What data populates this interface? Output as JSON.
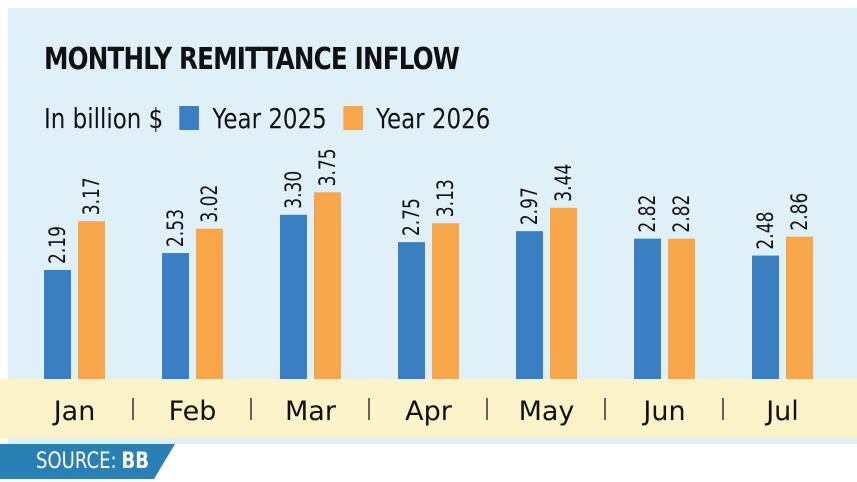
{
  "chart_data": {
    "type": "bar",
    "title": "MONTHLY REMITTANCE INFLOW",
    "ylabel": "In billion $",
    "categories": [
      "Jan",
      "Feb",
      "Mar",
      "Apr",
      "May",
      "Jun",
      "Jul"
    ],
    "series": [
      {
        "name": "Year 2025",
        "color": "#3a7fc1",
        "values": [
          2.19,
          2.53,
          3.3,
          2.75,
          2.97,
          2.82,
          2.48
        ]
      },
      {
        "name": "Year 2026",
        "color": "#f7a64a",
        "values": [
          3.17,
          3.02,
          3.75,
          3.13,
          3.44,
          2.82,
          2.86
        ]
      }
    ],
    "ylim": [
      0,
      4.4
    ],
    "grid": false,
    "legend_position": "top-left"
  },
  "source": {
    "label": "SOURCE:",
    "value": "BB"
  },
  "colors": {
    "background": "#dff0f9",
    "axis_band": "#fcf3c8",
    "source_band": "#2a7fb5"
  }
}
